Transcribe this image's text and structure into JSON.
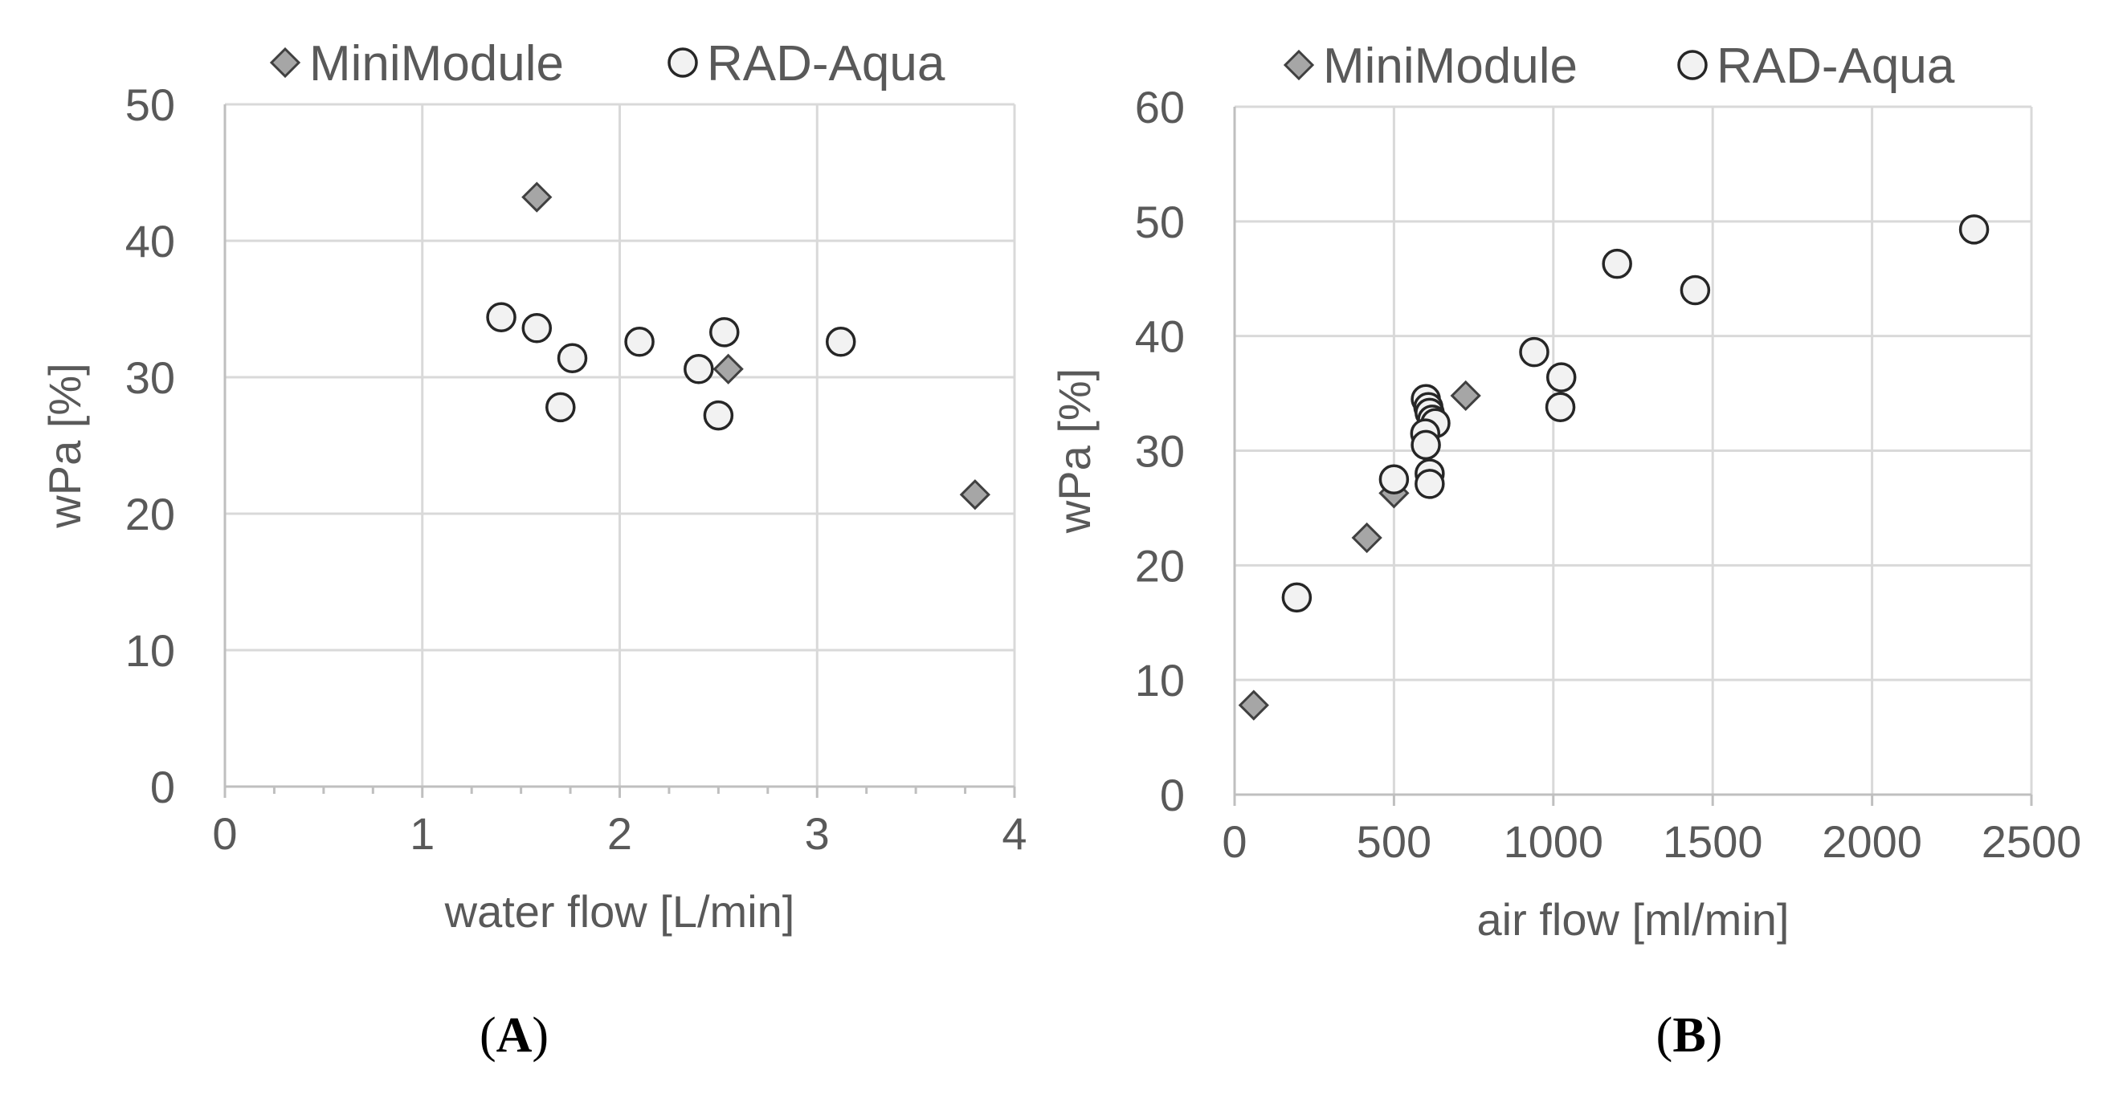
{
  "chart_data": [
    {
      "type": "scatter",
      "panel": "A",
      "xlabel": "water flow [L/min]",
      "ylabel": "wPa [%]",
      "xlim": [
        0,
        4
      ],
      "ylim": [
        0,
        50
      ],
      "xticks": [
        0,
        1,
        2,
        3,
        4
      ],
      "yticks": [
        0,
        10,
        20,
        30,
        40,
        50
      ],
      "grid": true,
      "legend": "top",
      "series": [
        {
          "name": "MiniModule",
          "marker": "diamond",
          "color": "#a6a6a6",
          "points": [
            [
              1.58,
              43.2
            ],
            [
              2.55,
              30.6
            ],
            [
              3.8,
              21.4
            ]
          ]
        },
        {
          "name": "RAD-Aqua",
          "marker": "circle",
          "color": "#f2f2f2",
          "points": [
            [
              1.4,
              34.4
            ],
            [
              1.58,
              33.6
            ],
            [
              1.76,
              31.4
            ],
            [
              1.7,
              27.8
            ],
            [
              2.1,
              32.6
            ],
            [
              2.4,
              30.6
            ],
            [
              2.5,
              27.2
            ],
            [
              2.53,
              33.3
            ],
            [
              3.12,
              32.6
            ]
          ]
        }
      ]
    },
    {
      "type": "scatter",
      "panel": "B",
      "xlabel": "air flow [ml/min]",
      "ylabel": "wPa [%]",
      "xlim": [
        0,
        2500
      ],
      "ylim": [
        0,
        60
      ],
      "xticks": [
        0,
        500,
        1000,
        1500,
        2000,
        2500
      ],
      "yticks": [
        0,
        10,
        20,
        30,
        40,
        50,
        60
      ],
      "grid": true,
      "legend": "top",
      "series": [
        {
          "name": "MiniModule",
          "marker": "diamond",
          "color": "#a6a6a6",
          "points": [
            [
              60,
              7.8
            ],
            [
              415,
              22.4
            ],
            [
              500,
              26.3
            ],
            [
              725,
              34.8
            ]
          ]
        },
        {
          "name": "RAD-Aqua",
          "marker": "circle",
          "color": "#f2f2f2",
          "points": [
            [
              195,
              17.2
            ],
            [
              500,
              27.5
            ],
            [
              600,
              34.5
            ],
            [
              608,
              33.8
            ],
            [
              612,
              33.3
            ],
            [
              620,
              32.7
            ],
            [
              630,
              32.4
            ],
            [
              598,
              31.5
            ],
            [
              600,
              30.5
            ],
            [
              612,
              28.0
            ],
            [
              612,
              27.1
            ],
            [
              940,
              38.6
            ],
            [
              1025,
              36.4
            ],
            [
              1022,
              33.8
            ],
            [
              1200,
              46.3
            ],
            [
              1445,
              44.0
            ],
            [
              2320,
              49.3
            ]
          ]
        }
      ]
    }
  ]
}
